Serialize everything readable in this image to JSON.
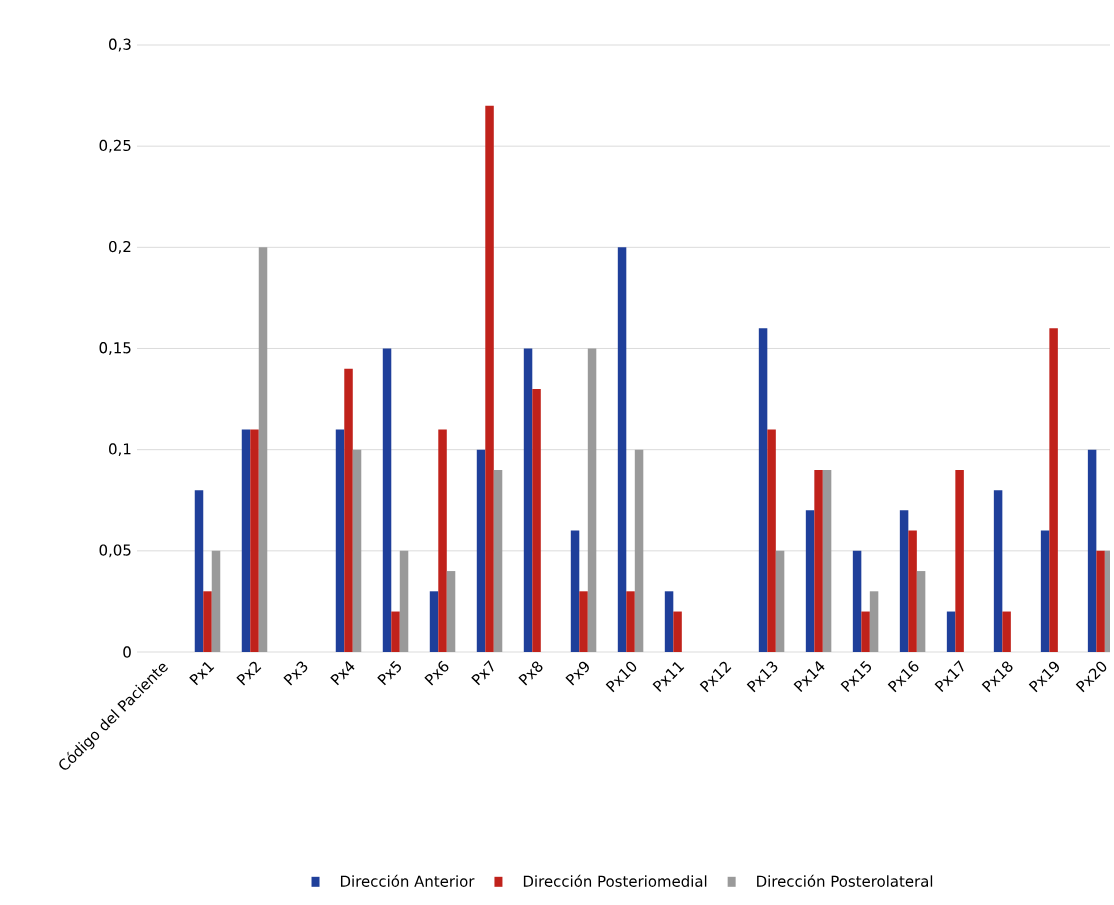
{
  "chart_data": {
    "type": "bar",
    "categories": [
      "Código del Paciente",
      "Px1",
      "Px2",
      "Px3",
      "Px4",
      "Px5",
      "Px6",
      "Px7",
      "Px8",
      "Px9",
      "Px10",
      "Px11",
      "Px12",
      "Px13",
      "Px14",
      "Px15",
      "Px16",
      "Px17",
      "Px18",
      "Px19",
      "Px20"
    ],
    "series": [
      {
        "name": "Dirección Anterior",
        "color": "#1f3f9a",
        "values": [
          null,
          0.08,
          0.11,
          0,
          0.11,
          0.15,
          0.03,
          0.1,
          0.15,
          0.06,
          0.2,
          0.03,
          0,
          0.16,
          0.07,
          0.05,
          0.07,
          0.02,
          0.08,
          0.06,
          0.1
        ]
      },
      {
        "name": "Dirección Posteriomedial",
        "color": "#c0221b",
        "values": [
          null,
          0.03,
          0.11,
          0,
          0.14,
          0.02,
          0.11,
          0.27,
          0.13,
          0.03,
          0.03,
          0.02,
          0,
          0.11,
          0.09,
          0.02,
          0.06,
          0.09,
          0.02,
          0.16,
          0.05
        ]
      },
      {
        "name": "Dirección Posterolateral",
        "color": "#9a9a9a",
        "values": [
          null,
          0.05,
          0.2,
          0,
          0.1,
          0.05,
          0.04,
          0.09,
          0,
          0.15,
          0.1,
          0,
          0,
          0.05,
          0.09,
          0.03,
          0.04,
          0,
          0,
          0,
          0.05
        ]
      }
    ],
    "ylim": [
      0,
      0.3
    ],
    "yticks": [
      {
        "value": 0,
        "label": "0"
      },
      {
        "value": 0.05,
        "label": "0,05"
      },
      {
        "value": 0.1,
        "label": "0,1"
      },
      {
        "value": 0.15,
        "label": "0,15"
      },
      {
        "value": 0.2,
        "label": "0,2"
      },
      {
        "value": 0.25,
        "label": "0,25"
      },
      {
        "value": 0.3,
        "label": "0,3"
      }
    ],
    "grid": "y",
    "legend": "bottom"
  }
}
